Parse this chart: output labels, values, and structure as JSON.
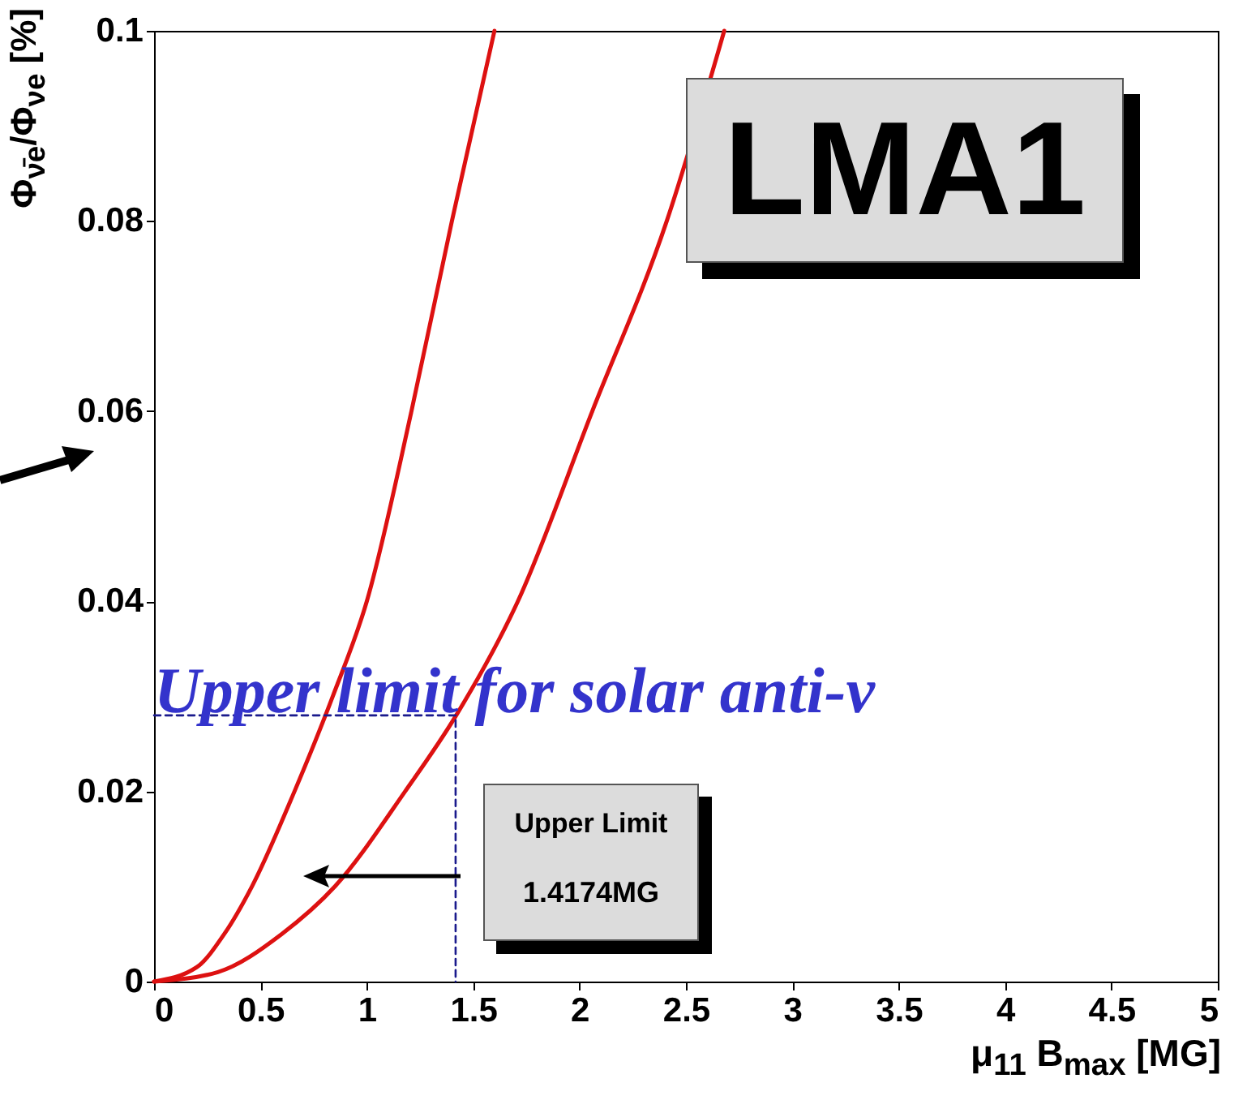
{
  "chart_data": {
    "type": "line",
    "xlabel": "μ$_{11}$ B$_{max}$ [MG]",
    "ylabel": "Φ$_{ν̄e}$/Φ$_{νe}$ [%]",
    "xlim": [
      0,
      5
    ],
    "ylim": [
      0,
      0.1
    ],
    "xticks": [
      0,
      0.5,
      1,
      1.5,
      2,
      2.5,
      3,
      3.5,
      4,
      4.5,
      5
    ],
    "yticks": [
      0,
      0.02,
      0.04,
      0.06,
      0.08,
      0.1
    ],
    "grid": false,
    "marker": "none",
    "series": [
      {
        "color": "#dd1111",
        "line_style": "solid",
        "x": [
          0,
          0.2,
          0.33,
          0.46,
          0.66,
          0.84,
          1.0,
          1.21,
          1.4,
          1.6
        ],
        "values": [
          0,
          0.0015,
          0.005,
          0.01,
          0.02,
          0.03,
          0.04,
          0.06,
          0.08,
          0.1
        ]
      },
      {
        "color": "#dd1111",
        "line_style": "solid",
        "x": [
          0,
          0.3,
          0.6,
          0.85,
          1.18,
          1.42,
          1.71,
          2.06,
          2.41,
          2.68
        ],
        "values": [
          0,
          0.001,
          0.005,
          0.01,
          0.02,
          0.028,
          0.04,
          0.06,
          0.08,
          0.1
        ]
      },
      {
        "color": "#1a1a8c",
        "line_style": "dashed",
        "x": [
          0,
          1.4174,
          1.4174
        ],
        "values": [
          0.028,
          0.028,
          0
        ]
      }
    ],
    "annotations": [
      "LMA1",
      "Upper limit for solar anti-ν",
      "Upper Limit",
      "1.4174MG"
    ]
  }
}
